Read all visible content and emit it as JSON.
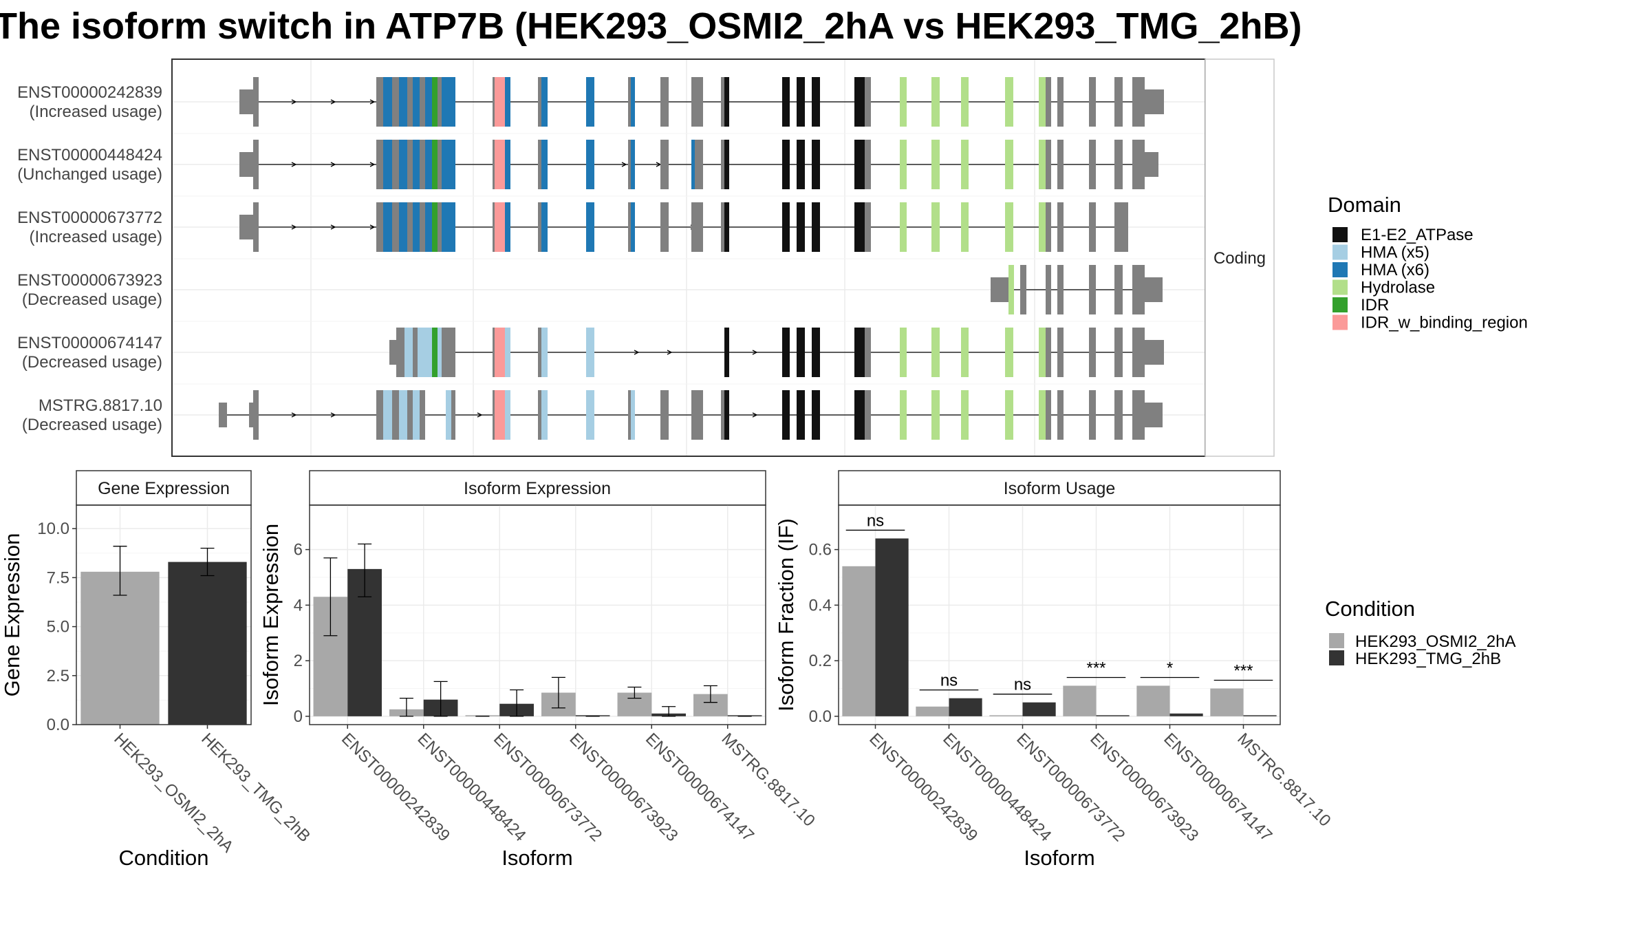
{
  "title": "The isoform switch in ATP7B (HEK293_OSMI2_2hA vs HEK293_TMG_2hB)",
  "structure": {
    "facet_label": "Coding",
    "transcripts": [
      {
        "id": "ENST00000242839",
        "usage": "(Increased usage)"
      },
      {
        "id": "ENST00000448424",
        "usage": "(Unchanged usage)"
      },
      {
        "id": "ENST00000673772",
        "usage": "(Increased usage)"
      },
      {
        "id": "ENST00000673923",
        "usage": "(Decreased usage)"
      },
      {
        "id": "ENST00000674147",
        "usage": "(Decreased usage)"
      },
      {
        "id": "MSTRG.8817.10",
        "usage": "(Decreased usage)"
      }
    ]
  },
  "domain_legend": {
    "title": "Domain",
    "items": [
      {
        "label": "E1-E2_ATPase",
        "color": "#111111"
      },
      {
        "label": "HMA (x5)",
        "color": "#a6cee3"
      },
      {
        "label": "HMA (x6)",
        "color": "#1f78b4"
      },
      {
        "label": "Hydrolase",
        "color": "#b2df8a"
      },
      {
        "label": "IDR",
        "color": "#33a02c"
      },
      {
        "label": "IDR_w_binding_region",
        "color": "#fb9a99"
      }
    ]
  },
  "condition_legend": {
    "title": "Condition",
    "items": [
      {
        "label": "HEK293_OSMI2_2hA",
        "color": "#a8a8a8"
      },
      {
        "label": "HEK293_TMG_2hB",
        "color": "#333333"
      }
    ]
  },
  "chart_data": [
    {
      "type": "bar",
      "title": "Gene Expression",
      "xlabel": "Condition",
      "ylabel": "Gene Expression",
      "ylim": [
        0,
        11.2
      ],
      "yticks": [
        "0.0",
        "2.5",
        "5.0",
        "7.5",
        "10.0"
      ],
      "categories": [
        "HEK293_OSMI2_2hA",
        "HEK293_TMG_2hB"
      ],
      "values": [
        7.8,
        8.3
      ],
      "error": [
        [
          6.6,
          9.1
        ],
        [
          7.6,
          9.0
        ]
      ],
      "colors": [
        "#a8a8a8",
        "#333333"
      ]
    },
    {
      "type": "bar",
      "title": "Isoform Expression",
      "xlabel": "Isoform",
      "ylabel": "Isoform Expression",
      "ylim": [
        -0.3,
        7.6
      ],
      "yticks": [
        "0",
        "2",
        "4",
        "6"
      ],
      "categories": [
        "ENST00000242839",
        "ENST00000448424",
        "ENST00000673772",
        "ENST00000673923",
        "ENST00000674147",
        "MSTRG.8817.10"
      ],
      "series": [
        {
          "name": "HEK293_OSMI2_2hA",
          "values": [
            4.3,
            0.25,
            0.0,
            0.85,
            0.85,
            0.8
          ],
          "error": [
            [
              2.9,
              5.7
            ],
            [
              0.0,
              0.65
            ],
            [
              0.0,
              0.0
            ],
            [
              0.3,
              1.4
            ],
            [
              0.65,
              1.05
            ],
            [
              0.5,
              1.1
            ]
          ]
        },
        {
          "name": "HEK293_TMG_2hB",
          "values": [
            5.3,
            0.6,
            0.45,
            0.0,
            0.1,
            0.0
          ],
          "error": [
            [
              4.3,
              6.2
            ],
            [
              0.0,
              1.25
            ],
            [
              0.0,
              0.95
            ],
            [
              0.0,
              0.0
            ],
            [
              0.0,
              0.35
            ],
            [
              0.0,
              0.0
            ]
          ]
        }
      ]
    },
    {
      "type": "bar",
      "title": "Isoform Usage",
      "xlabel": "Isoform",
      "ylabel": "Isoform Fraction (IF)",
      "ylim": [
        -0.03,
        0.76
      ],
      "yticks": [
        "0.0",
        "0.2",
        "0.4",
        "0.6"
      ],
      "categories": [
        "ENST00000242839",
        "ENST00000448424",
        "ENST00000673772",
        "ENST00000673923",
        "ENST00000674147",
        "MSTRG.8817.10"
      ],
      "series": [
        {
          "name": "HEK293_OSMI2_2hA",
          "values": [
            0.54,
            0.035,
            0.0,
            0.11,
            0.11,
            0.1
          ]
        },
        {
          "name": "HEK293_TMG_2hB",
          "values": [
            0.64,
            0.065,
            0.05,
            0.0,
            0.01,
            0.0
          ]
        }
      ],
      "significance": [
        "ns",
        "ns",
        "ns",
        "***",
        "*",
        "***"
      ]
    }
  ]
}
